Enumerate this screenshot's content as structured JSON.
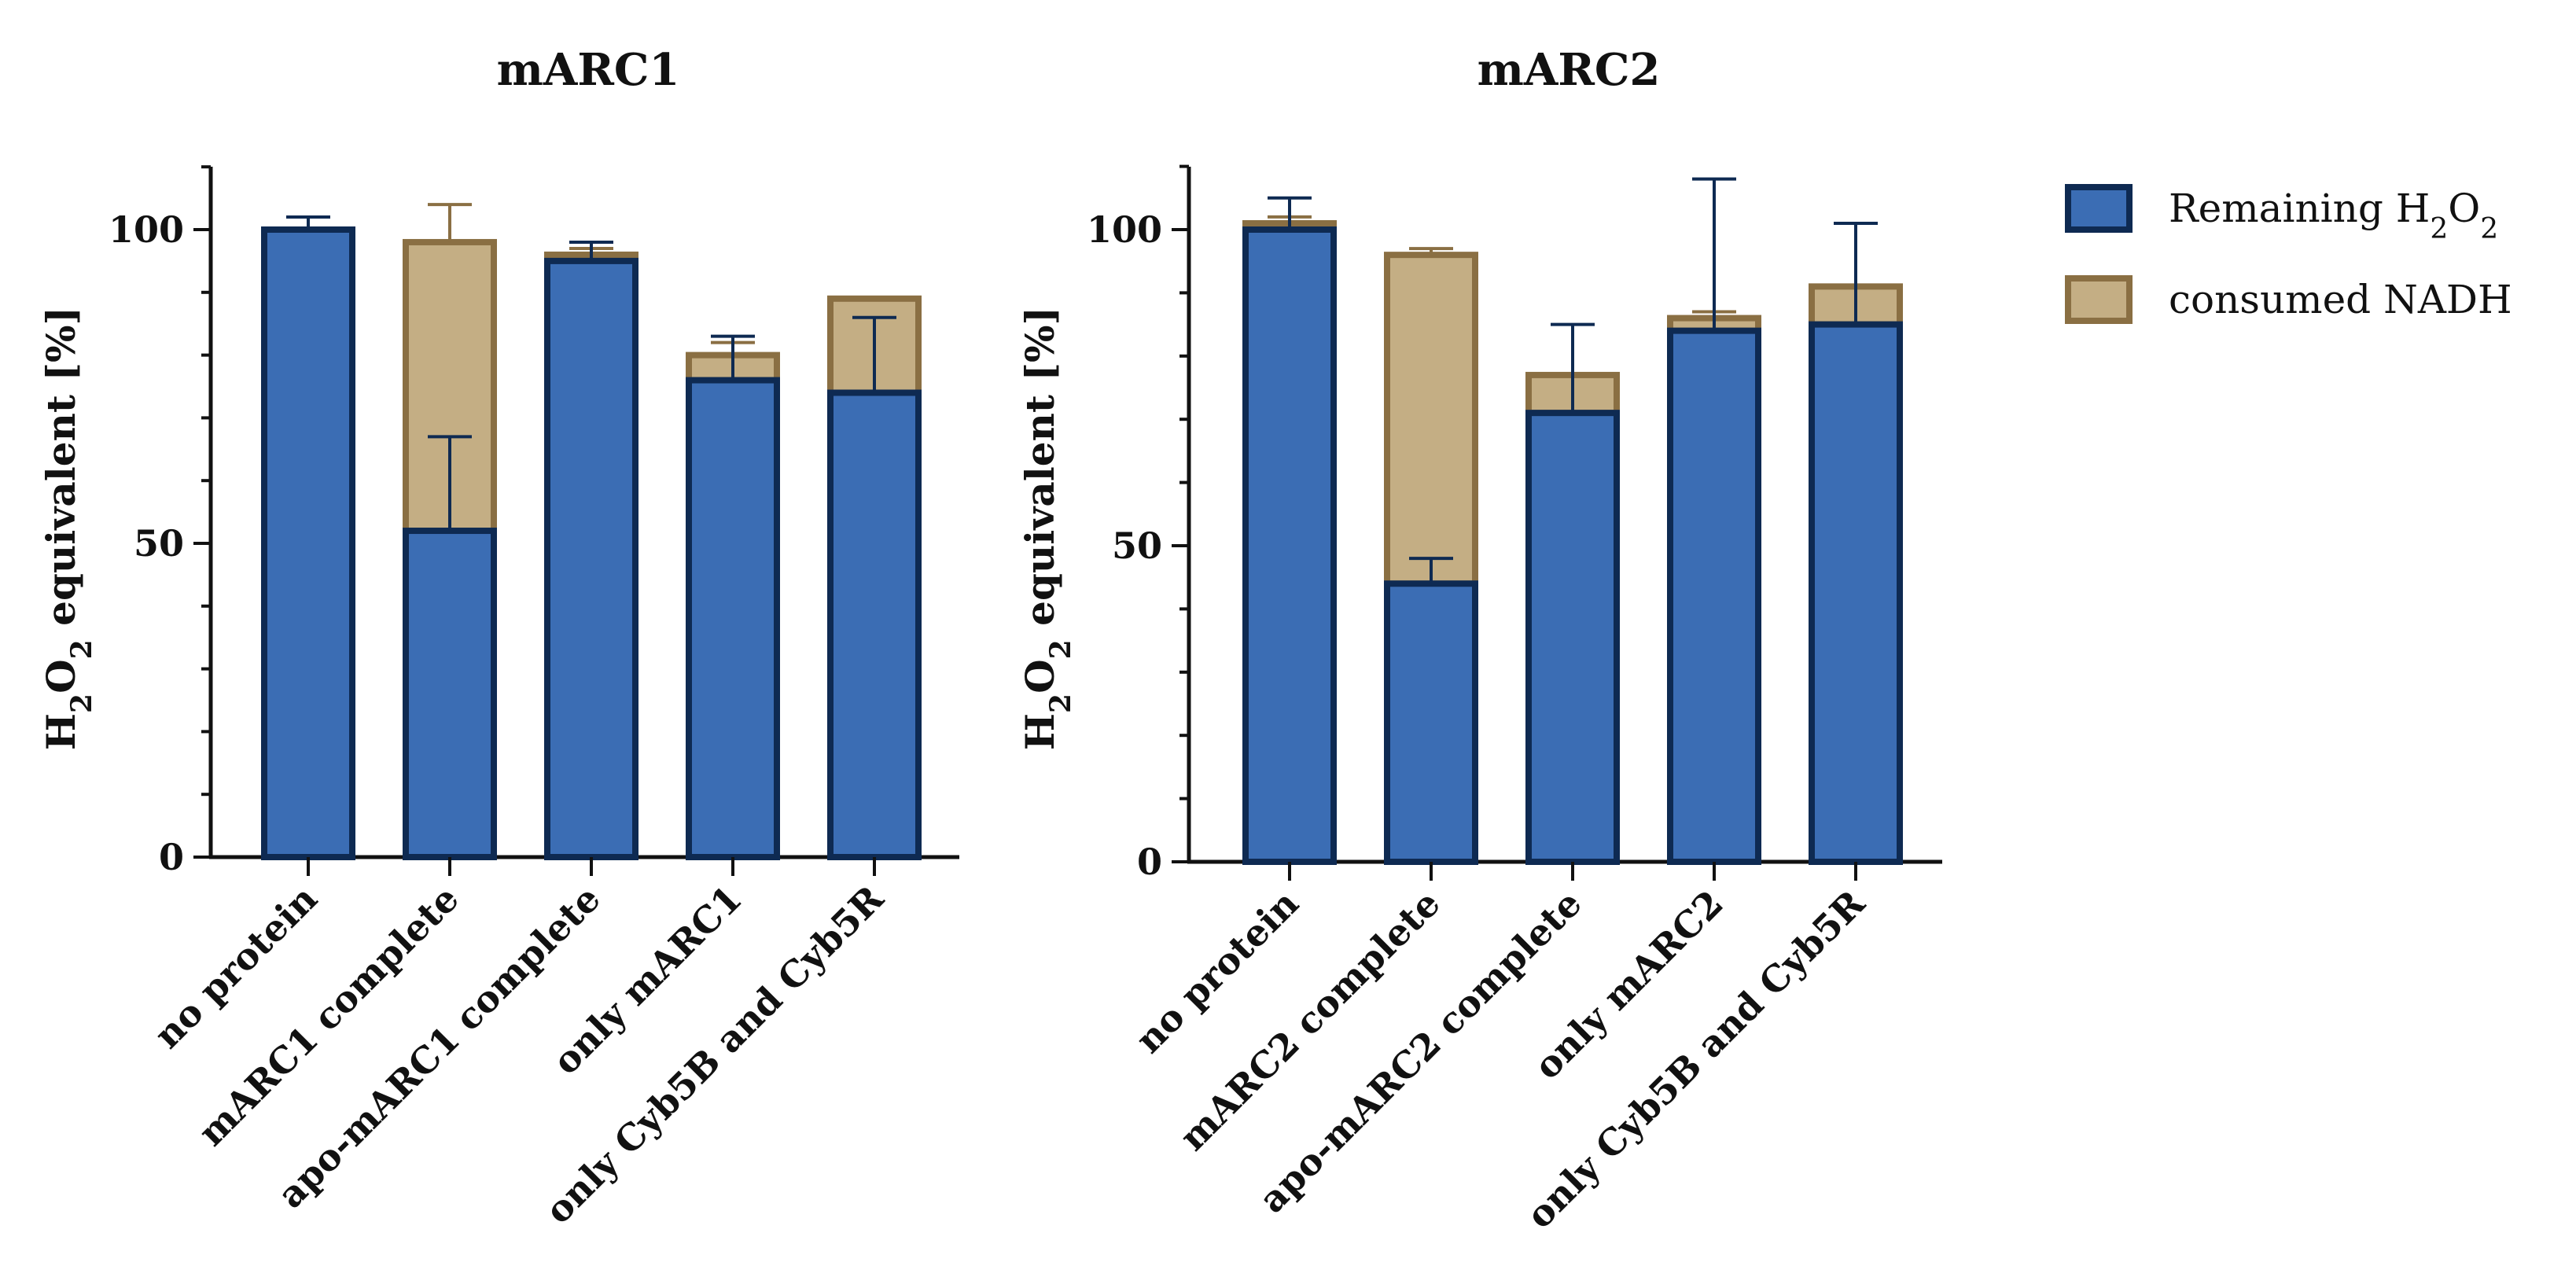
{
  "chart_data": [
    {
      "type": "bar",
      "stacked": true,
      "title": "mARC1",
      "xlabel": "",
      "ylabel": "H2O2 equivalent [%]",
      "ylim": [
        0,
        110
      ],
      "yticks": [
        0,
        50,
        100
      ],
      "categories": [
        "no protein",
        "mARC1 complete",
        "apo-mARC1 complete",
        "only mARC1",
        "only Cyb5B and Cyb5R"
      ],
      "series": [
        {
          "name": "Remaining H2O2",
          "values": [
            100,
            52,
            95,
            76,
            74
          ],
          "error": [
            2,
            15,
            3,
            7,
            12
          ]
        },
        {
          "name": "consumed NADH",
          "values": [
            0,
            46,
            1,
            4,
            15
          ],
          "error": [
            0,
            6,
            1,
            2,
            0
          ]
        }
      ]
    },
    {
      "type": "bar",
      "stacked": true,
      "title": "mARC2",
      "xlabel": "",
      "ylabel": "H2O2 equivalent [%]",
      "ylim": [
        0,
        110
      ],
      "yticks": [
        0,
        50,
        100
      ],
      "categories": [
        "no protein",
        "mARC2 complete",
        "apo-mARC2 complete",
        "only mARC2",
        "only Cyb5B and Cyb5R"
      ],
      "series": [
        {
          "name": "Remaining H2O2",
          "values": [
            100,
            44,
            71,
            84,
            85
          ],
          "error": [
            5,
            4,
            14,
            24,
            16
          ]
        },
        {
          "name": "consumed NADH",
          "values": [
            1,
            52,
            6,
            2,
            6
          ],
          "error": [
            1,
            1,
            0,
            1,
            0
          ]
        }
      ]
    }
  ],
  "legend": {
    "position": "top-right",
    "items": [
      {
        "label": "Remaining H2O2",
        "fill": "#3b6db4",
        "stroke": "#0e2a52"
      },
      {
        "label": "consumed NADH",
        "fill": "#c4ae84",
        "stroke": "#8a6f43"
      }
    ]
  },
  "colors": {
    "remaining_fill": "#3b6db4",
    "remaining_stroke": "#0e2a52",
    "nadh_fill": "#c4ae84",
    "nadh_stroke": "#8a6f43",
    "axis": "#111111"
  }
}
